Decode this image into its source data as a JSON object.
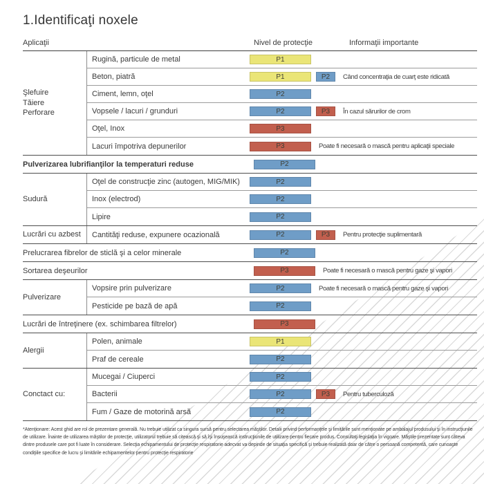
{
  "page": {
    "title": "1.Identificaţi noxele"
  },
  "header": {
    "col_applications": "Aplicaţii",
    "col_protection": "Nivel de protecţie",
    "col_info": "Informaţii importante"
  },
  "levels": {
    "P1": {
      "label": "P1",
      "color": "#eae577"
    },
    "P2": {
      "label": "P2",
      "color": "#6f9dc7"
    },
    "P3": {
      "label": "P3",
      "color": "#c25f4e"
    }
  },
  "groups": [
    {
      "name": "Şlefuire\nTăiere\nPerforare",
      "full": false,
      "bold": false,
      "rows": [
        {
          "label": "Rugină, particule de metal",
          "level": "P1",
          "extra": null,
          "info": ""
        },
        {
          "label": "Beton, piatră",
          "level": "P1",
          "extra": "P2",
          "info": "Când concentraţia de cuarţ este ridicată"
        },
        {
          "label": "Ciment, lemn, oţel",
          "level": "P2",
          "extra": null,
          "info": ""
        },
        {
          "label": "Vopsele / lacuri / grunduri",
          "level": "P2",
          "extra": "P3",
          "info": "În cazul sărurilor de crom"
        },
        {
          "label": "Oţel, Inox",
          "level": "P3",
          "extra": null,
          "info": ""
        },
        {
          "label": "Lacuri împotriva depunerilor",
          "level": "P3",
          "extra": null,
          "info": "Poate fi necesară o mască pentru aplicaţii speciale"
        }
      ]
    },
    {
      "name": "Pulverizarea lubrifianţilor la temperaturi reduse",
      "full": true,
      "bold": true,
      "rows": [
        {
          "label": "",
          "level": "P2",
          "extra": null,
          "info": ""
        }
      ]
    },
    {
      "name": "Sudură",
      "full": false,
      "bold": false,
      "rows": [
        {
          "label": "Oţel de construcţie zinc (autogen, MIG/MIK)",
          "level": "P2",
          "extra": null,
          "info": ""
        },
        {
          "label": "Inox (electrod)",
          "level": "P2",
          "extra": null,
          "info": ""
        },
        {
          "label": "Lipire",
          "level": "P2",
          "extra": null,
          "info": ""
        }
      ]
    },
    {
      "name": "Lucrări cu azbest",
      "full": false,
      "bold": false,
      "rows": [
        {
          "label": "Cantităţi reduse, expunere ocazională",
          "level": "P2",
          "extra": "P3",
          "info": "Pentru protecţie suplimentară"
        }
      ]
    },
    {
      "name": "Prelucrarea fibrelor de sticlă şi a celor minerale",
      "full": true,
      "bold": false,
      "rows": [
        {
          "label": "",
          "level": "P2",
          "extra": null,
          "info": ""
        }
      ]
    },
    {
      "name": "Sortarea deşeurilor",
      "full": true,
      "bold": false,
      "rows": [
        {
          "label": "",
          "level": "P3",
          "extra": null,
          "info": "Poate fi necesară o mască pentru gaze şi vapori"
        }
      ]
    },
    {
      "name": "Pulverizare",
      "full": false,
      "bold": false,
      "rows": [
        {
          "label": "Vopsire prin pulverizare",
          "level": "P2",
          "extra": null,
          "info": "Poate fi necesară o mască pentru gaze şi vapori"
        },
        {
          "label": "Pesticide pe bază de apă",
          "level": "P2",
          "extra": null,
          "info": ""
        }
      ]
    },
    {
      "name": "Lucrări de întreţinere (ex. schimbarea filtrelor)",
      "full": true,
      "bold": false,
      "rows": [
        {
          "label": "",
          "level": "P3",
          "extra": null,
          "info": ""
        }
      ]
    },
    {
      "name": "Alergii",
      "full": false,
      "bold": false,
      "rows": [
        {
          "label": "Polen, animale",
          "level": "P1",
          "extra": null,
          "info": ""
        },
        {
          "label": "Praf de cereale",
          "level": "P2",
          "extra": null,
          "info": ""
        }
      ]
    },
    {
      "name": "Conctact cu:",
      "full": false,
      "bold": false,
      "rows": [
        {
          "label": "Mucegai / Ciuperci",
          "level": "P2",
          "extra": null,
          "info": ""
        },
        {
          "label": "Bacterii",
          "level": "P2",
          "extra": "P3",
          "info": "Pentru tuberculoză"
        },
        {
          "label": "Fum / Gaze de motorină arsă",
          "level": "P2",
          "extra": null,
          "info": ""
        }
      ]
    }
  ],
  "footnote": "*Atenţionare: Acest ghid are rol de prezentare generală. Nu trebuie utilizat ca singura sursă pentru selectarea măştilor. Detalii privind performanţele şi limitările sunt menţionate pe ambalajul produsului şi în instrucţiunile de utilizare. Înainte de utilizarea măştilor de protecţie, utilizatorul trebuie să citească şi să îşi însuşească instrucţiunile de utilizare pentru fiecare produs. Consultaţi legislaţia în vigoare. Măştile prezentate sunt câteva dintre produsele care pot fi luate în considerare. Selecţia echipamentului de protecţie respiratorie adecvat va depinde de situaţia specifică şi trebuie realizată doar de către o persoană competentă, care cunoaşte condiţiile specifice de lucru şi limitările echipamentelor pentru protecţie respiratorie"
}
